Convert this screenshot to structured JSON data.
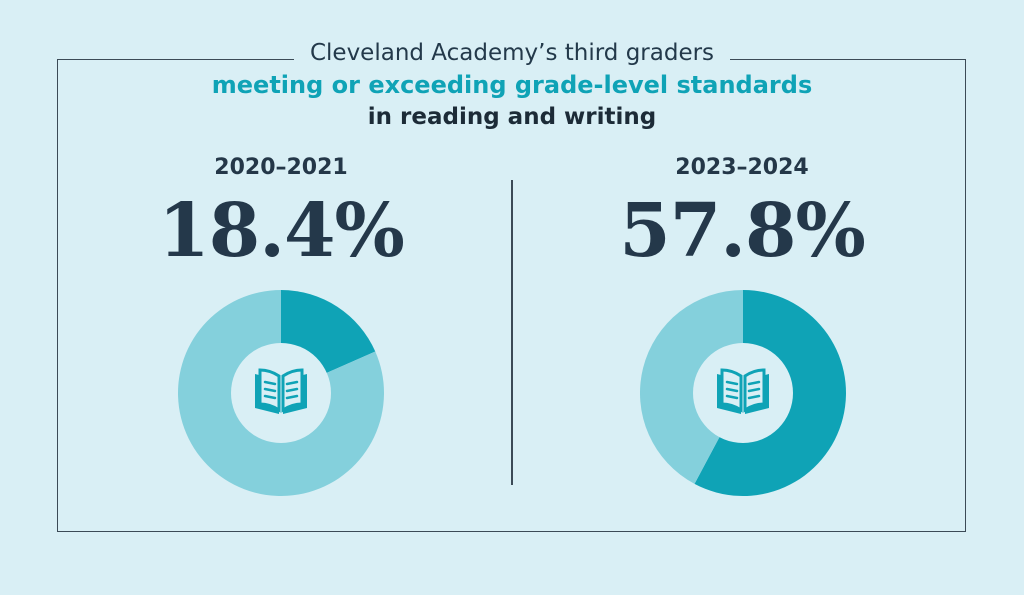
{
  "header": {
    "line1": "Cleveland Academy’s third graders",
    "line2": "meeting or exceeding grade-level standards",
    "line3": "in reading and writing"
  },
  "colors": {
    "background": "#d9eff5",
    "accent": "#0fa3b6",
    "ring_light": "#84d0dc",
    "hole": "#d9eff5",
    "text_dark": "#24384a"
  },
  "icons": {
    "center": "open-book-icon"
  },
  "chart_data": [
    {
      "type": "pie",
      "title": "2020–2021",
      "label": "18.4%",
      "values": [
        18.4,
        81.6
      ]
    },
    {
      "type": "pie",
      "title": "2023–2024",
      "label": "57.8%",
      "values": [
        57.8,
        42.2
      ]
    }
  ]
}
